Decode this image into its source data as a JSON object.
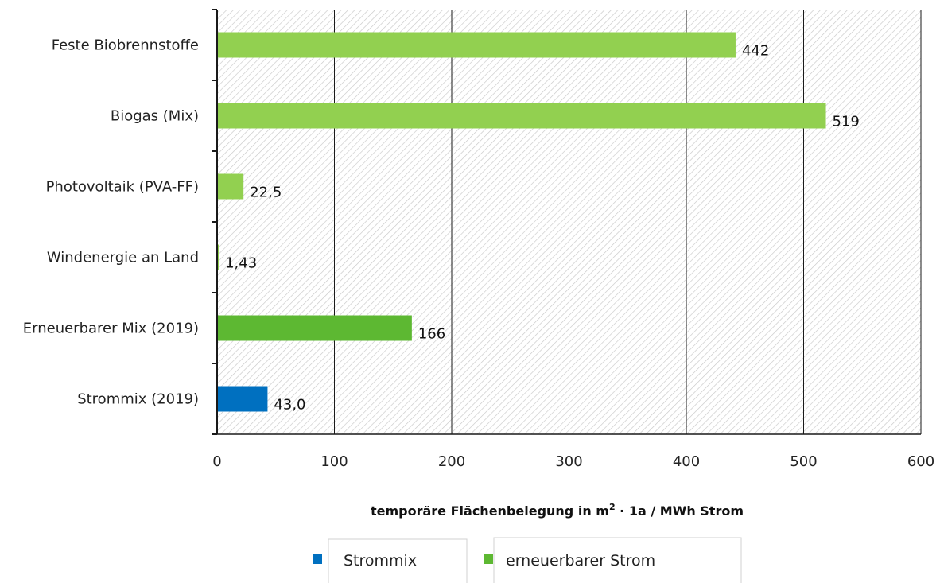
{
  "chart_data": {
    "type": "bar",
    "orientation": "horizontal",
    "categories": [
      "Feste Biobrennstoffe",
      "Biogas (Mix)",
      "Photovoltaik (PVA-FF)",
      "Windenergie an Land",
      "Erneuerbarer Mix (2019)",
      "Strommix (2019)"
    ],
    "values": [
      442,
      519,
      22.5,
      1.43,
      166,
      43.0
    ],
    "data_labels": [
      "442",
      "519",
      "22,5",
      "1,43",
      "166",
      "43,0"
    ],
    "bar_colors": [
      "#92d050",
      "#92d050",
      "#92d050",
      "#92d050",
      "#5db832",
      "#0070c0"
    ],
    "series": [
      {
        "name": "Strommix",
        "color": "#0070c0"
      },
      {
        "name": "erneuerbarer Strom",
        "color": "#5db832"
      }
    ],
    "xlabel_main": "temporäre Flächenbelegung in m",
    "xlabel_sup": "2",
    "xlabel_rest": " · 1a / MWh Strom",
    "ylabel": "",
    "xlim": [
      0,
      600
    ],
    "xticks": [
      0,
      100,
      200,
      300,
      400,
      500,
      600
    ],
    "xtick_labels": [
      "0",
      "100",
      "200",
      "300",
      "400",
      "500",
      "600"
    ],
    "grid": true,
    "plot_background": "hatched",
    "legend_position": "bottom"
  }
}
